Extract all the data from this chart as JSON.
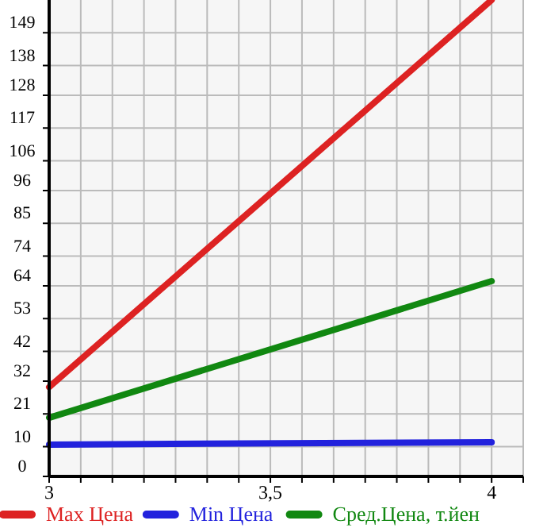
{
  "chart_data": {
    "type": "line",
    "x": [
      3,
      4
    ],
    "series": [
      {
        "name": "Max Цена",
        "color": "#dd2222",
        "values": [
          30,
          160
        ]
      },
      {
        "name": "Min Цена",
        "color": "#2222dd",
        "values": [
          10.7,
          11.5
        ]
      },
      {
        "name": "Сред.Цена, т.йен",
        "color": "#118811",
        "values": [
          19.7,
          65.6
        ]
      }
    ],
    "xlim": [
      3,
      4.0714
    ],
    "xticks": [
      3,
      {
        "value": 3.0714,
        "label": null
      },
      {
        "value": 3.1429,
        "label": null
      },
      {
        "value": 3.2143,
        "label": null
      },
      {
        "value": 3.2857,
        "label": null
      },
      {
        "value": 3.3571,
        "label": null
      },
      {
        "value": 3.4286,
        "label": null
      },
      {
        "value": 3.5,
        "label": "3,5"
      },
      {
        "value": 3.5714,
        "label": null
      },
      {
        "value": 3.6429,
        "label": null
      },
      {
        "value": 3.7143,
        "label": null
      },
      {
        "value": 3.7857,
        "label": null
      },
      {
        "value": 3.8571,
        "label": null
      },
      {
        "value": 3.9286,
        "label": null
      },
      4,
      {
        "value": 4.0714,
        "label": null
      }
    ],
    "ylim": [
      0,
      160
    ],
    "yticks": [
      0,
      10,
      21,
      32,
      42,
      53,
      64,
      74,
      85,
      96,
      106,
      117,
      128,
      138,
      149
    ],
    "grid": true,
    "legend": "bottom",
    "marker": "none",
    "line_style": "solid"
  }
}
